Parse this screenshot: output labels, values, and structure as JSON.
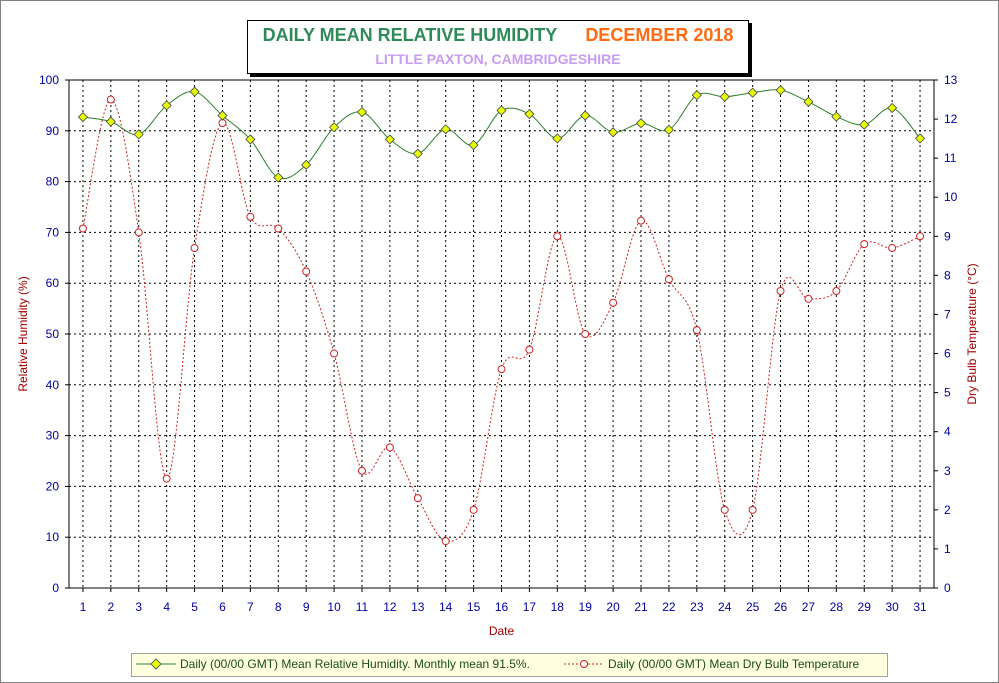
{
  "title": {
    "main": "DAILY MEAN RELATIVE HUMIDITY",
    "date": "DECEMBER 2018",
    "subtitle": "LITTLE PAXTON, CAMBRIDGESHIRE"
  },
  "colors": {
    "humidity_line": "#2f7f2f",
    "humidity_marker": "#e8ff00",
    "temperature_line": "#cc2222",
    "axis_text": "#0000a0",
    "axis_title": "#a00000",
    "legend_bg": "#ffffe0"
  },
  "legend": {
    "humidity": "Daily (00/00 GMT) Mean Relative Humidity. Monthly mean 91.5%.",
    "temperature": "Daily (00/00 GMT) Mean Dry Bulb Temperature"
  },
  "chart_data": {
    "type": "line",
    "xlabel": "Date",
    "ylabel": "Relative Humidity (%)",
    "y2label": "Dry Bulb Temperature (°C)",
    "x": [
      1,
      2,
      3,
      4,
      5,
      6,
      7,
      8,
      9,
      10,
      11,
      12,
      13,
      14,
      15,
      16,
      17,
      18,
      19,
      20,
      21,
      22,
      23,
      24,
      25,
      26,
      27,
      28,
      29,
      30,
      31
    ],
    "ylim": [
      0,
      100
    ],
    "y_ticks": [
      0,
      10,
      20,
      30,
      40,
      50,
      60,
      70,
      80,
      90,
      100
    ],
    "y2lim": [
      0,
      13
    ],
    "y2_ticks": [
      0,
      1,
      2,
      3,
      4,
      5,
      6,
      7,
      8,
      9,
      10,
      11,
      12,
      13
    ],
    "grid": true,
    "legend_position": "bottom",
    "series": [
      {
        "name": "Daily (00/00 GMT) Mean Relative Humidity",
        "axis": "left",
        "values": [
          92.7,
          91.8,
          89.3,
          95.0,
          97.7,
          93.0,
          88.3,
          80.8,
          83.3,
          90.7,
          93.7,
          88.3,
          85.5,
          90.3,
          87.2,
          94.0,
          93.3,
          88.5,
          93.0,
          89.7,
          91.5,
          90.2,
          97.0,
          96.7,
          97.5,
          98.0,
          95.7,
          92.8,
          91.2,
          94.5,
          88.5
        ]
      },
      {
        "name": "Daily (00/00 GMT) Mean Dry Bulb Temperature",
        "axis": "right",
        "values": [
          9.2,
          12.5,
          9.1,
          2.8,
          8.7,
          11.9,
          9.5,
          9.2,
          8.1,
          6.0,
          3.0,
          3.6,
          2.3,
          1.2,
          2.0,
          5.6,
          6.1,
          9.0,
          6.5,
          7.3,
          9.4,
          7.9,
          6.6,
          2.0,
          2.0,
          7.6,
          7.4,
          7.6,
          8.8,
          8.7,
          9.0
        ]
      }
    ]
  }
}
